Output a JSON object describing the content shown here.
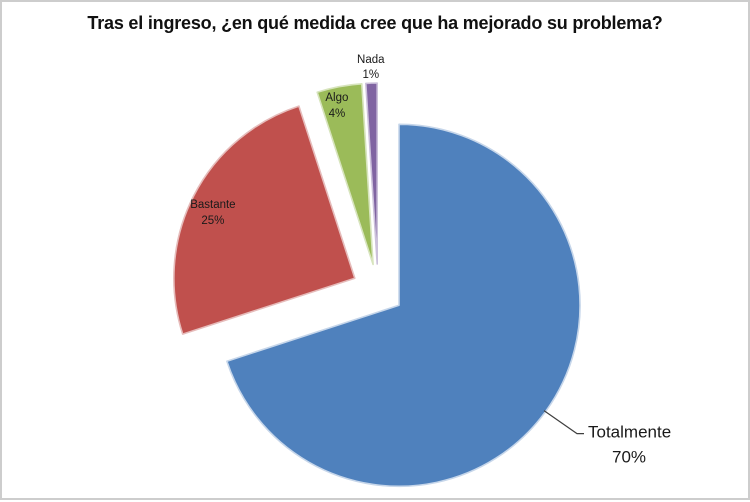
{
  "page": {
    "background": "#ffffff",
    "frame_border_color": "#cdcdcd"
  },
  "chart_data": {
    "type": "pie",
    "title": "Tras el ingreso, ¿en qué medida cree que ha mejorado su problema?",
    "exploded": true,
    "start_angle_deg": 0,
    "direction": "clockwise",
    "legend": "none",
    "data_labels": "category name and percentage",
    "leader_line_color": "#3f3f3f",
    "label_color": "#1a1a1a",
    "slices": [
      {
        "label": "Totalmente",
        "value": 70,
        "percent_label": "70%",
        "color": "#4f81bd",
        "edge_color": "#c6d6ea",
        "label_placement": "callout"
      },
      {
        "label": "Bastante",
        "value": 25,
        "percent_label": "25%",
        "color": "#c0504d",
        "edge_color": "#e6bcbb",
        "label_placement": "inside"
      },
      {
        "label": "Algo",
        "value": 4,
        "percent_label": "4%",
        "color": "#9bbb59",
        "edge_color": "#d7e4bd",
        "label_placement": "inside"
      },
      {
        "label": "Nada",
        "value": 1,
        "percent_label": "1%",
        "color": "#8064a2",
        "edge_color": "#ccc1db",
        "label_placement": "outside"
      }
    ]
  }
}
